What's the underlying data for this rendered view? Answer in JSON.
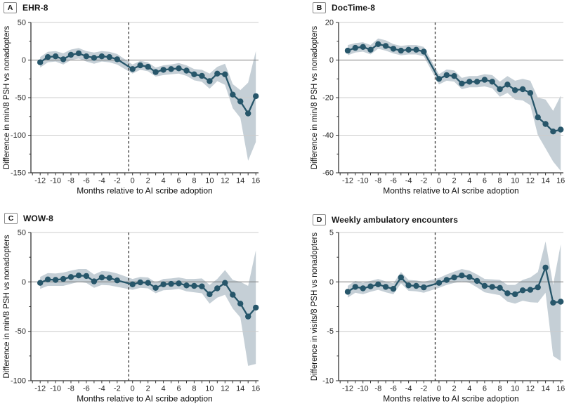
{
  "figure": {
    "xlabel": "Months relative to AI scribe adoption",
    "labeled_x_ticks": [
      -12,
      -10,
      -8,
      -6,
      -4,
      -2,
      0,
      2,
      4,
      6,
      8,
      10,
      12,
      14,
      16
    ],
    "adoption_marker_x": -0.5,
    "colors": {
      "series_line": "#27566a",
      "data_point": "#27566a",
      "ci_band": "#c5cfd6",
      "zero_line": "#7a7a7a",
      "gridline": "#cccccc",
      "axis": "#333333",
      "dashed_line": "#333333",
      "text": "#262626",
      "background": "#ffffff"
    }
  },
  "chart_data": [
    {
      "panel": "A",
      "title": "EHR-8",
      "type": "line",
      "ylabel": "Difference in min/8 PSH vs nonadopters",
      "xlabel": "Months relative to AI scribe adoption",
      "ylim": [
        -150,
        50
      ],
      "yticks": [
        50,
        0,
        -50,
        -100,
        -150
      ],
      "xlim": [
        -13.2,
        16.35
      ],
      "reference_month_omitted": -1,
      "x": [
        -12,
        -11,
        -10,
        -9,
        -8,
        -7,
        -6,
        -5,
        -4,
        -3,
        -2,
        0,
        1,
        2,
        3,
        4,
        5,
        6,
        7,
        8,
        9,
        10,
        11,
        12,
        13,
        14,
        15,
        16
      ],
      "y": [
        -3,
        4,
        5,
        1,
        7,
        9,
        5,
        3,
        5,
        4,
        1,
        -12,
        -7,
        -9,
        -16,
        -13,
        -12,
        -11,
        -14,
        -19,
        -21,
        -28,
        -18,
        -19,
        -46,
        -55,
        -71,
        -48
      ],
      "ci_upper": [
        4,
        11,
        12,
        9,
        14,
        16,
        12,
        10,
        12,
        11,
        8,
        -6,
        -1,
        -3,
        -10,
        -7,
        -6,
        -4,
        -7,
        -12,
        -13,
        -18,
        -9,
        -5,
        -32,
        -40,
        -30,
        12
      ],
      "ci_lower": [
        -10,
        -3,
        -2,
        -6,
        0,
        2,
        -2,
        -5,
        -2,
        -3,
        -6,
        -18,
        -13,
        -15,
        -22,
        -20,
        -19,
        -18,
        -21,
        -27,
        -29,
        -38,
        -28,
        -33,
        -64,
        -77,
        -134,
        -109
      ]
    },
    {
      "panel": "B",
      "title": "DocTime-8",
      "type": "line",
      "ylabel": "Difference in min/8 PSH vs nonadopters",
      "xlabel": "Months relative to AI scribe adoption",
      "ylim": [
        -60,
        20
      ],
      "yticks": [
        20,
        0,
        -20,
        -40,
        -60
      ],
      "xlim": [
        -13.2,
        16.35
      ],
      "reference_month_omitted": -1,
      "x": [
        -12,
        -11,
        -10,
        -9,
        -8,
        -7,
        -6,
        -5,
        -4,
        -3,
        -2,
        0,
        1,
        2,
        3,
        4,
        5,
        6,
        7,
        8,
        9,
        10,
        11,
        12,
        13,
        14,
        15,
        16
      ],
      "y": [
        5,
        6.5,
        7,
        5.5,
        8.5,
        7.5,
        6,
        5,
        5.5,
        5.5,
        4.5,
        -10,
        -8,
        -8.5,
        -12.5,
        -11.5,
        -11.5,
        -10.5,
        -11.5,
        -15.5,
        -13,
        -16,
        -15.5,
        -17.5,
        -30.5,
        -34,
        -38,
        -37
      ],
      "ci_upper": [
        8,
        9,
        9.5,
        8,
        11.5,
        10.5,
        8.5,
        7.5,
        8,
        8,
        7,
        -7.5,
        -5,
        -5.5,
        -9.5,
        -8.5,
        -8.5,
        -7.5,
        -8,
        -11.5,
        -8.5,
        -11,
        -10,
        -11,
        -20,
        -21,
        -27,
        -19
      ],
      "ci_lower": [
        2.5,
        4,
        4.5,
        3,
        6,
        5,
        3.5,
        2.5,
        3,
        3,
        2,
        -13,
        -11,
        -11.5,
        -15.5,
        -14.5,
        -14.5,
        -14,
        -15,
        -19.5,
        -17.5,
        -21,
        -21.5,
        -24,
        -40,
        -47,
        -54,
        -59
      ]
    },
    {
      "panel": "C",
      "title": "WOW-8",
      "type": "line",
      "ylabel": "Difference in min/8 PSH vs nonadopters",
      "xlabel": "Months relative to AI scribe adoption",
      "ylim": [
        -100,
        50
      ],
      "yticks": [
        50,
        0,
        -50,
        -100
      ],
      "xlim": [
        -13.2,
        16.35
      ],
      "reference_month_omitted": -1,
      "x": [
        -12,
        -11,
        -10,
        -9,
        -8,
        -7,
        -6,
        -5,
        -4,
        -3,
        -2,
        0,
        1,
        2,
        3,
        4,
        5,
        6,
        7,
        8,
        9,
        10,
        11,
        12,
        13,
        14,
        15,
        16
      ],
      "y": [
        -1,
        2.5,
        2,
        3,
        5,
        6.5,
        6,
        0.5,
        4.5,
        4,
        1.5,
        -2.5,
        -0.5,
        -1,
        -6,
        -2.5,
        -2,
        -1.5,
        -3.5,
        -4,
        -4.5,
        -12.5,
        -6.5,
        -1,
        -13,
        -22,
        -35,
        -26
      ],
      "ci_upper": [
        5,
        9,
        8.5,
        9.5,
        11.5,
        13,
        13,
        7.5,
        11,
        10.5,
        8.5,
        3,
        5,
        4.5,
        -0.5,
        3,
        3.5,
        4.5,
        3,
        3,
        3.5,
        -3,
        3,
        12,
        2,
        0,
        -4,
        32
      ],
      "ci_lower": [
        -7,
        -4,
        -4,
        -4,
        -2,
        0,
        -1,
        -6,
        -3,
        -3.5,
        -5,
        -8,
        -6,
        -6.5,
        -11.5,
        -8.5,
        -8,
        -7,
        -9.5,
        -10.5,
        -11.5,
        -22,
        -16,
        -13,
        -27,
        -36,
        -85,
        -83
      ]
    },
    {
      "panel": "D",
      "title": "Weekly ambulatory encounters",
      "type": "line",
      "ylabel": "Difference in visits/8 PSH vs nonadopters",
      "xlabel": "Months relative to AI scribe adoption",
      "ylim": [
        -10,
        5
      ],
      "yticks": [
        5,
        0,
        -5,
        -10
      ],
      "xlim": [
        -13.2,
        16.35
      ],
      "reference_month_omitted": -1,
      "x": [
        -12,
        -11,
        -10,
        -9,
        -8,
        -7,
        -6,
        -5,
        -4,
        -3,
        -2,
        0,
        1,
        2,
        3,
        4,
        5,
        6,
        7,
        8,
        9,
        10,
        11,
        12,
        13,
        14,
        15,
        16
      ],
      "y": [
        -1,
        -0.5,
        -0.65,
        -0.45,
        -0.25,
        -0.5,
        -0.7,
        0.45,
        -0.35,
        -0.4,
        -0.55,
        -0.1,
        0.2,
        0.45,
        0.65,
        0.5,
        0.1,
        -0.4,
        -0.5,
        -0.6,
        -1.15,
        -1.25,
        -0.85,
        -0.8,
        -0.55,
        1.45,
        -2.1,
        -2
      ],
      "ci_upper": [
        -0.4,
        0.1,
        -0.1,
        0.1,
        0.3,
        0.05,
        -0.15,
        1,
        0.2,
        0.15,
        0,
        0.4,
        0.75,
        1.05,
        1.3,
        1.15,
        0.75,
        0.3,
        0.25,
        0.2,
        -0.3,
        -0.3,
        0.2,
        0.45,
        1,
        4.1,
        -0.3,
        3.8
      ],
      "ci_lower": [
        -1.6,
        -1.1,
        -1.25,
        -1,
        -0.8,
        -1.05,
        -1.25,
        -0.15,
        -0.9,
        -0.95,
        -1.1,
        -0.6,
        -0.3,
        -0.1,
        0.05,
        -0.1,
        -0.55,
        -1.05,
        -1.2,
        -1.35,
        -2,
        -2.2,
        -1.9,
        -2.05,
        -2.1,
        -1.1,
        -7.5,
        -8
      ]
    }
  ]
}
